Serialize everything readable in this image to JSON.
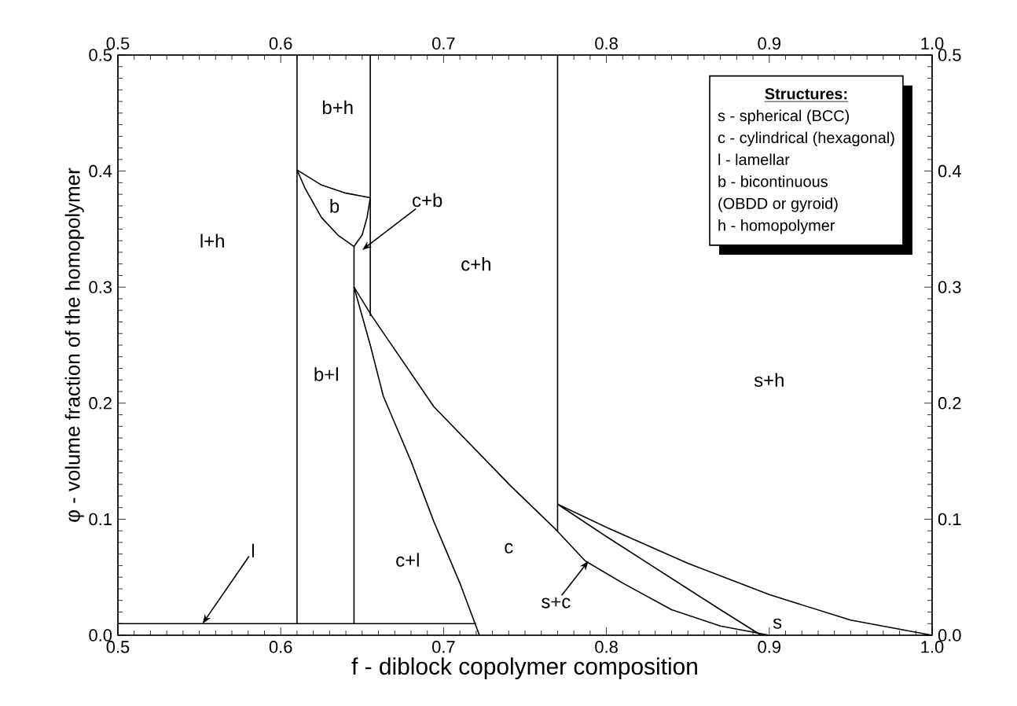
{
  "chart_data": {
    "type": "line",
    "xlabel": "f - diblock copolymer composition",
    "ylabel": "φ - volume fraction of the homopolymer",
    "xlim": [
      0.5,
      1.0
    ],
    "ylim": [
      0,
      0.5
    ],
    "x2lim": [
      0.5,
      1.0
    ],
    "y2lim": [
      0,
      0.5
    ],
    "xticks": [
      {
        "value": 0.5,
        "label": "0.5"
      },
      {
        "value": 0.6,
        "label": "0.6"
      },
      {
        "value": 0.7,
        "label": "0.7"
      },
      {
        "value": 0.8,
        "label": "0.8"
      },
      {
        "value": 0.9,
        "label": "0.9"
      },
      {
        "value": 1.0,
        "label": "1.0"
      }
    ],
    "x2ticks": [
      {
        "value": 0.5,
        "label": "0.5"
      },
      {
        "value": 0.6,
        "label": "0.6"
      },
      {
        "value": 0.7,
        "label": "0.7"
      },
      {
        "value": 0.8,
        "label": "0.8"
      },
      {
        "value": 0.9,
        "label": "0.9"
      },
      {
        "value": 1.0,
        "label": "1.0"
      }
    ],
    "yticks": [
      {
        "value": 0,
        "label": "0.0"
      },
      {
        "value": 0.1,
        "label": "0.1"
      },
      {
        "value": 0.2,
        "label": "0.2"
      },
      {
        "value": 0.3,
        "label": "0.3"
      },
      {
        "value": 0.4,
        "label": "0.4"
      },
      {
        "value": 0.5,
        "label": "0.5"
      }
    ],
    "y2ticks": [
      {
        "value": 0,
        "label": "0.0"
      },
      {
        "value": 0.1,
        "label": "0.1"
      },
      {
        "value": 0.2,
        "label": "0.2"
      },
      {
        "value": 0.3,
        "label": "0.3"
      },
      {
        "value": 0.4,
        "label": "0.4"
      },
      {
        "value": 0.5,
        "label": "0.5"
      }
    ],
    "marker": "none",
    "line_style": "solid",
    "series": [
      {
        "color": "#000000",
        "x": [
          0.61,
          0.61
        ],
        "values": [
          0.01,
          0.5
        ]
      },
      {
        "color": "#000000",
        "x": [
          0.655,
          0.655
        ],
        "values": [
          0.275,
          0.5
        ]
      },
      {
        "color": "#000000",
        "x": [
          0.645,
          0.645
        ],
        "values": [
          0.01,
          0.335
        ]
      },
      {
        "color": "#000000",
        "x": [
          0.77,
          0.77
        ],
        "values": [
          0.09,
          0.5
        ]
      },
      {
        "color": "#000000",
        "x": [
          0.5,
          0.72
        ],
        "values": [
          0.01,
          0.01
        ]
      },
      {
        "color": "#000000",
        "x": [
          0.61,
          0.625,
          0.64,
          0.655
        ],
        "values": [
          0.401,
          0.388,
          0.381,
          0.377
        ]
      },
      {
        "color": "#000000",
        "x": [
          0.61,
          0.615,
          0.625,
          0.635,
          0.645
        ],
        "values": [
          0.401,
          0.385,
          0.36,
          0.345,
          0.335
        ]
      },
      {
        "color": "#000000",
        "x": [
          0.645,
          0.65,
          0.653,
          0.655
        ],
        "values": [
          0.335,
          0.345,
          0.36,
          0.377
        ]
      },
      {
        "color": "#000000",
        "x": [
          0.645,
          0.655,
          0.663,
          0.68,
          0.694,
          0.71,
          0.722
        ],
        "values": [
          0.3,
          0.25,
          0.206,
          0.15,
          0.098,
          0.045,
          0
        ]
      },
      {
        "color": "#000000",
        "x": [
          0.645,
          0.656,
          0.694,
          0.741,
          0.769,
          0.787,
          0.81,
          0.84,
          0.87,
          0.9
        ],
        "values": [
          0.3,
          0.275,
          0.197,
          0.129,
          0.091,
          0.064,
          0.045,
          0.022,
          0.008,
          0
        ]
      },
      {
        "color": "#000000",
        "x": [
          0.77,
          0.8,
          0.83,
          0.85,
          0.87,
          0.895
        ],
        "values": [
          0.113,
          0.085,
          0.058,
          0.04,
          0.022,
          0
        ]
      },
      {
        "color": "#000000",
        "x": [
          0.77,
          0.8,
          0.85,
          0.9,
          0.95,
          1.0
        ],
        "values": [
          0.113,
          0.093,
          0.062,
          0.035,
          0.013,
          0
        ]
      }
    ],
    "annotations": [
      "l+h",
      "b+h",
      "b",
      "c+b",
      "c+h",
      "b+l",
      "c+l",
      "c",
      "s+h",
      "s",
      {
        "text": "l",
        "x": 0.552,
        "y": 0.01
      },
      {
        "text": "s+c",
        "x": 0.789,
        "y": 0.064
      },
      "Structures:",
      "s - spherical (BCC)",
      "c - cylindrical (hexagonal)",
      "l -  lamellar",
      "b - bicontinuous",
      "(OBDD or gyroid)",
      "h - homopolymer"
    ]
  }
}
